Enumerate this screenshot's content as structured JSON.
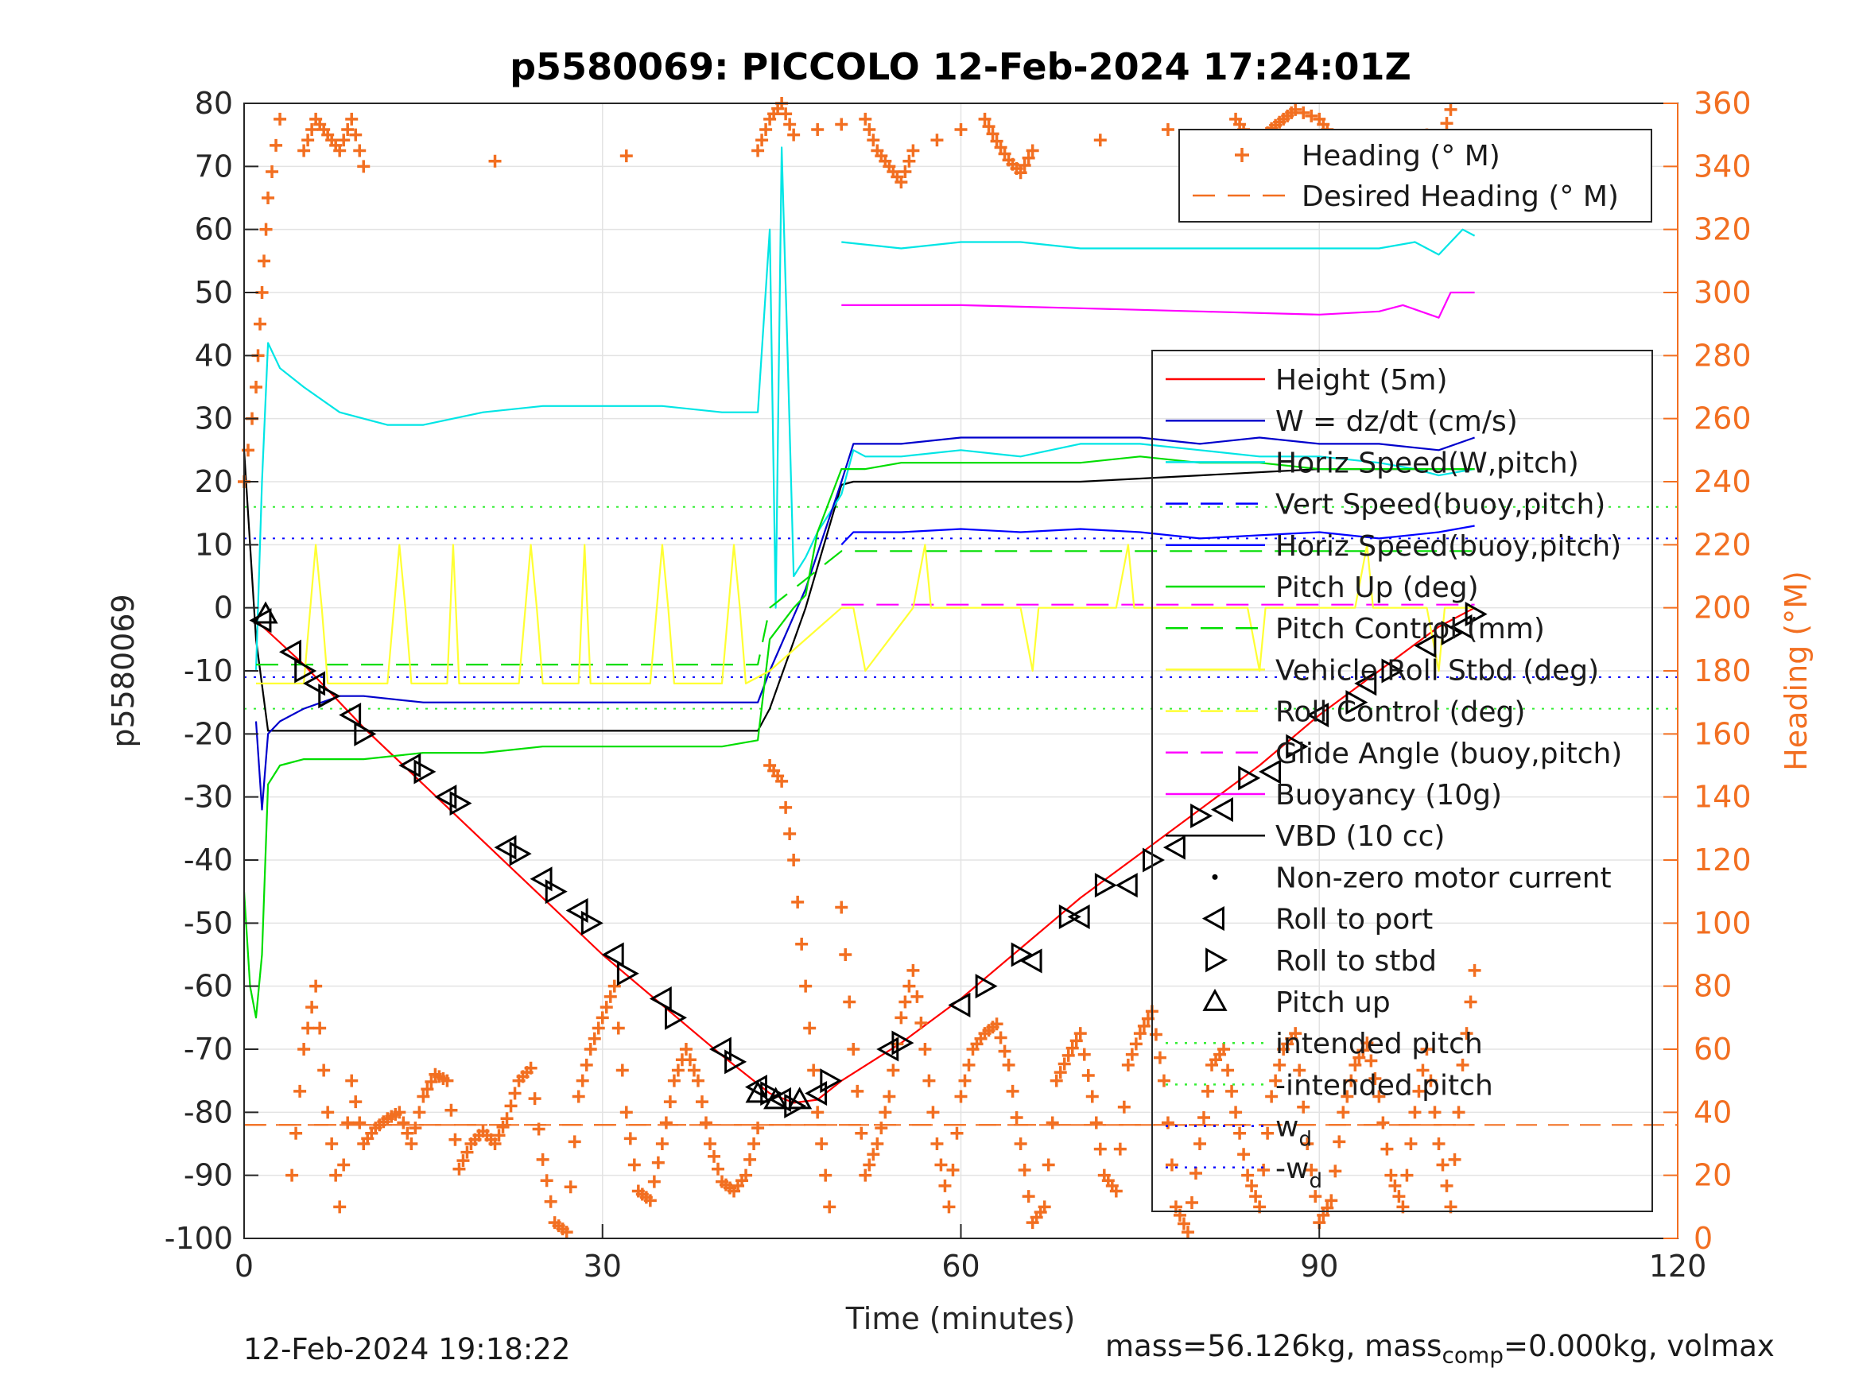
{
  "chart_data": {
    "type": "line",
    "title": "p5580069: PICCOLO 12-Feb-2024 17:24:01Z",
    "xlabel": "Time (minutes)",
    "ylabel": "p5580069",
    "y2label": "Heading (°M)",
    "xlim": [
      0,
      120
    ],
    "ylim": [
      -100,
      80
    ],
    "y2lim": [
      0,
      360
    ],
    "xticks": [
      0,
      30,
      60,
      90,
      120
    ],
    "yticks": [
      -100,
      -90,
      -80,
      -70,
      -60,
      -50,
      -40,
      -30,
      -20,
      -10,
      0,
      10,
      20,
      30,
      40,
      50,
      60,
      70,
      80
    ],
    "y2ticks": [
      0,
      20,
      40,
      60,
      80,
      100,
      120,
      140,
      160,
      180,
      200,
      220,
      240,
      260,
      280,
      300,
      320,
      340,
      360
    ],
    "grid": true,
    "legend_top": {
      "placement": "top-right",
      "entries": [
        {
          "label": "Heading (° M)",
          "color": "#f26f21",
          "style": "plus"
        },
        {
          "label": "Desired Heading (° M)",
          "color": "#f26f21",
          "style": "dashed"
        }
      ]
    },
    "legend_main": {
      "placement": "right",
      "entries": [
        {
          "label": "Height (5m)",
          "color": "#ff0000",
          "style": "solid"
        },
        {
          "label": "W = dz/dt (cm/s)",
          "color": "#0000cc",
          "style": "solid"
        },
        {
          "label": "Horiz Speed(W,pitch)",
          "color": "#00e5e5",
          "style": "solid"
        },
        {
          "label": "Vert Speed(buoy,pitch)",
          "color": "#0000ff",
          "style": "dashed"
        },
        {
          "label": "Horiz Speed(buoy,pitch)",
          "color": "#0000ff",
          "style": "solid"
        },
        {
          "label": "Pitch Up (deg)",
          "color": "#00dd00",
          "style": "solid"
        },
        {
          "label": "Pitch Control (mm)",
          "color": "#00dd00",
          "style": "dashed"
        },
        {
          "label": "Vehicle Roll Stbd (deg)",
          "color": "#ffff33",
          "style": "solid"
        },
        {
          "label": "Roll Control (deg)",
          "color": "#ffff33",
          "style": "dashed"
        },
        {
          "label": "Glide Angle (buoy,pitch)",
          "color": "#ff00ff",
          "style": "dashed"
        },
        {
          "label": "Buoyancy (10g)",
          "color": "#ff00ff",
          "style": "solid"
        },
        {
          "label": "VBD (10 cc)",
          "color": "#000000",
          "style": "solid"
        },
        {
          "label": "Non-zero motor current",
          "color": "#000000",
          "style": "dot"
        },
        {
          "label": "Roll to port",
          "color": "#000000",
          "style": "tri-left"
        },
        {
          "label": "Roll to stbd",
          "color": "#000000",
          "style": "tri-right"
        },
        {
          "label": "Pitch up",
          "color": "#000000",
          "style": "tri-up"
        },
        {
          "label": "intended pitch",
          "color": "#33ee33",
          "style": "dotted"
        },
        {
          "label": "-intended pitch",
          "color": "#33ee33",
          "style": "dotted"
        },
        {
          "label": "w_d",
          "color": "#0000ff",
          "style": "dotted"
        },
        {
          "label": "-w_d",
          "color": "#0000ff",
          "style": "dotted"
        }
      ]
    },
    "reference_lines": [
      {
        "name": "intended pitch",
        "y": 16,
        "color": "#33ee33"
      },
      {
        "name": "-intended pitch",
        "y": -16,
        "color": "#33ee33"
      },
      {
        "name": "w_d",
        "y": 11,
        "color": "#0000ff"
      },
      {
        "name": "-w_d",
        "y": -11,
        "color": "#0000ff"
      },
      {
        "name": "Desired Heading (° M)",
        "y2": 36,
        "color": "#f26f21"
      }
    ],
    "series": [
      {
        "name": "Height (5m)",
        "color": "#ff0000",
        "axis": "left",
        "x": [
          1,
          5,
          10,
          15,
          20,
          25,
          30,
          35,
          40,
          44,
          46,
          48,
          50,
          55,
          60,
          65,
          70,
          75,
          80,
          85,
          90,
          95,
          100,
          103
        ],
        "y": [
          -2,
          -9,
          -19,
          -28,
          -37,
          -46,
          -55,
          -63,
          -71,
          -77,
          -78.5,
          -78,
          -75,
          -69,
          -62,
          -54,
          -46,
          -39,
          -32,
          -25,
          -17,
          -10,
          -3,
          0
        ]
      },
      {
        "name": "VBD (10 cc)",
        "color": "#000000",
        "axis": "left",
        "x": [
          0,
          0.5,
          1,
          2,
          10,
          20,
          30,
          40,
          43,
          44,
          47,
          50,
          51,
          60,
          70,
          80,
          90,
          96,
          100,
          103
        ],
        "y": [
          25,
          10,
          -5,
          -19.5,
          -19.5,
          -19.5,
          -19.5,
          -19.5,
          -19.5,
          -16,
          0,
          19.5,
          20,
          20,
          20,
          21,
          22,
          22,
          22,
          22
        ]
      },
      {
        "name": "Horiz Speed(W,pitch)",
        "color": "#00e5e5",
        "axis": "left",
        "x": [
          1,
          1.5,
          2,
          3,
          5,
          8,
          10,
          12,
          15,
          20,
          25,
          30,
          35,
          40,
          43,
          44,
          44.5,
          45,
          45.5,
          46,
          47,
          48,
          50,
          51,
          52,
          55,
          60,
          65,
          70,
          75,
          80,
          85,
          90,
          95,
          98,
          100,
          103
        ],
        "y": [
          -10,
          20,
          42,
          38,
          35,
          31,
          30,
          29,
          29,
          31,
          32,
          32,
          32,
          31,
          31,
          60,
          0,
          73,
          40,
          5,
          8,
          12,
          18,
          25,
          24,
          24,
          25,
          24,
          26,
          26,
          25,
          24,
          24,
          23,
          22,
          21,
          22
        ]
      },
      {
        "name": "Horiz Speed(W,pitch) upper",
        "color": "#00e5e5",
        "axis": "left",
        "x": [
          50,
          55,
          60,
          65,
          70,
          75,
          80,
          85,
          90,
          95,
          98,
          100,
          102,
          103
        ],
        "y": [
          58,
          57,
          58,
          58,
          57,
          57,
          57,
          57,
          57,
          57,
          58,
          56,
          60,
          59
        ]
      },
      {
        "name": "W = dz/dt (cm/s)",
        "color": "#0000cc",
        "axis": "left",
        "x": [
          1,
          1.5,
          2,
          3,
          5,
          8,
          10,
          15,
          20,
          25,
          30,
          35,
          40,
          43,
          44,
          47,
          50,
          51,
          55,
          60,
          65,
          70,
          75,
          80,
          85,
          90,
          95,
          100,
          103
        ],
        "y": [
          -18,
          -32,
          -20,
          -18,
          -16,
          -14,
          -14,
          -15,
          -15,
          -15,
          -15,
          -15,
          -15,
          -15,
          -10,
          3,
          20,
          26,
          26,
          27,
          27,
          27,
          27,
          26,
          27,
          26,
          26,
          25,
          27
        ]
      },
      {
        "name": "Horiz Speed(buoy,pitch)",
        "color": "#0000ff",
        "axis": "left",
        "x": [
          50,
          51,
          55,
          60,
          65,
          70,
          75,
          80,
          85,
          90,
          95,
          100,
          103
        ],
        "y": [
          10,
          12,
          12,
          12.5,
          12,
          12.5,
          12,
          11,
          11.5,
          12,
          11,
          12,
          13
        ]
      },
      {
        "name": "Pitch Up (deg)",
        "color": "#00dd00",
        "axis": "left",
        "x": [
          0,
          0.5,
          1,
          1.5,
          2,
          3,
          5,
          10,
          15,
          20,
          25,
          30,
          35,
          40,
          43,
          44,
          46,
          47,
          48,
          50,
          52,
          55,
          60,
          65,
          70,
          75,
          80,
          85,
          90,
          95,
          100,
          103
        ],
        "y": [
          -45,
          -60,
          -65,
          -55,
          -28,
          -25,
          -24,
          -24,
          -23,
          -23,
          -22,
          -22,
          -22,
          -22,
          -21,
          -5,
          0,
          2,
          12,
          22,
          22,
          23,
          23,
          23,
          23,
          24,
          23,
          23,
          22,
          22,
          22,
          22
        ]
      },
      {
        "name": "Pitch Control (mm)",
        "color": "#00dd00",
        "axis": "left",
        "dashed": true,
        "x": [
          1,
          43,
          44,
          50,
          103
        ],
        "y": [
          -9,
          -9,
          0,
          9,
          9
        ]
      },
      {
        "name": "Buoyancy (10g)",
        "color": "#ff00ff",
        "axis": "left",
        "x": [
          50,
          60,
          70,
          80,
          90,
          95,
          97,
          100,
          101,
          103
        ],
        "y": [
          48,
          48,
          47.5,
          47,
          46.5,
          47,
          48,
          46,
          50,
          50
        ]
      },
      {
        "name": "Glide Angle (buoy,pitch)",
        "color": "#ff00ff",
        "axis": "left",
        "dashed": true,
        "x": [
          50,
          103
        ],
        "y": [
          0.5,
          0.5
        ]
      },
      {
        "name": "Vehicle Roll Stbd (deg)",
        "color": "#ffff33",
        "axis": "left",
        "x": [
          1,
          2,
          5,
          6,
          6.5,
          7,
          12,
          13,
          13.5,
          14,
          17,
          17.5,
          18,
          23,
          24,
          24.5,
          25,
          28,
          28.5,
          29,
          34,
          35,
          35.5,
          36,
          40,
          41,
          41.5,
          42,
          44,
          50,
          51,
          52,
          56,
          57,
          57.5,
          58,
          65,
          66,
          66.5,
          67,
          73,
          74,
          74.5,
          75,
          84,
          85,
          85.5,
          86,
          93,
          94,
          94.5,
          95,
          99,
          100,
          100.5,
          101,
          103
        ],
        "y": [
          -12,
          -12,
          -12,
          10,
          0,
          -12,
          -12,
          10,
          0,
          -12,
          -12,
          10,
          -12,
          -12,
          10,
          0,
          -12,
          -12,
          10,
          -12,
          -12,
          10,
          0,
          -12,
          -12,
          10,
          0,
          -12,
          -10,
          0,
          0,
          -10,
          0,
          10,
          0,
          0,
          0,
          -10,
          0,
          0,
          0,
          10,
          0,
          0,
          0,
          -10,
          0,
          0,
          0,
          10,
          0,
          0,
          0,
          -10,
          0,
          0,
          0
        ]
      },
      {
        "name": "Heading (° M)",
        "color": "#f26f21",
        "axis": "right",
        "markers": "plus",
        "x": [
          0,
          1,
          1.5,
          2,
          3,
          4,
          5,
          6,
          7,
          8,
          9,
          10,
          11,
          12,
          13,
          14,
          15,
          16,
          17,
          18,
          19,
          20,
          21,
          22,
          23,
          24,
          25,
          26,
          27,
          28,
          29,
          30,
          31,
          32,
          33,
          34,
          35,
          36,
          37,
          38,
          39,
          40,
          41,
          42,
          43,
          44,
          45,
          46,
          47,
          48,
          49,
          50,
          51,
          52,
          53,
          54,
          55,
          56,
          57,
          58,
          59,
          60,
          61,
          62,
          63,
          64,
          65,
          66,
          67,
          68,
          69,
          70,
          71,
          72,
          73,
          74,
          75,
          76,
          77,
          78,
          79,
          80,
          81,
          82,
          83,
          84,
          85,
          86,
          87,
          88,
          89,
          90,
          91,
          92,
          93,
          94,
          95,
          96,
          97,
          98,
          99,
          100,
          101,
          102,
          103
        ],
        "y": [
          240,
          270,
          300,
          330,
          355,
          20,
          60,
          80,
          40,
          10,
          50,
          30,
          35,
          38,
          40,
          30,
          45,
          52,
          50,
          22,
          30,
          34,
          30,
          38,
          50,
          54,
          25,
          5,
          2,
          45,
          60,
          70,
          80,
          40,
          15,
          12,
          30,
          50,
          60,
          50,
          30,
          18,
          15,
          20,
          35,
          150,
          145,
          120,
          80,
          40,
          10,
          105,
          60,
          20,
          30,
          45,
          70,
          85,
          60,
          30,
          10,
          45,
          60,
          65,
          68,
          55,
          30,
          5,
          10,
          50,
          58,
          65,
          45,
          20,
          15,
          55,
          65,
          72,
          50,
          10,
          2,
          30,
          55,
          60,
          40,
          20,
          10,
          45,
          60,
          65,
          30,
          5,
          12,
          40,
          55,
          62,
          45,
          20,
          10,
          40,
          60,
          30,
          10,
          55,
          85
        ]
      },
      {
        "name": "Heading (° M) upper",
        "color": "#f26f21",
        "axis": "right",
        "markers": "plus",
        "x": [
          5,
          6,
          7,
          8,
          9,
          10,
          43,
          44,
          45,
          46,
          52,
          53,
          54,
          55,
          56,
          62,
          63,
          64,
          65,
          66,
          83,
          84,
          85,
          86,
          87,
          88,
          90,
          91,
          92,
          99,
          100,
          101
        ],
        "y": [
          345,
          355,
          350,
          345,
          355,
          340,
          345,
          355,
          360,
          350,
          355,
          345,
          340,
          335,
          345,
          355,
          348,
          342,
          338,
          345,
          355,
          350,
          348,
          352,
          355,
          358,
          355,
          350,
          345,
          350,
          345,
          358
        ]
      },
      {
        "name": "Desired Heading (° M)",
        "color": "#f26f21",
        "axis": "right",
        "dashed": true,
        "x": [
          0,
          103
        ],
        "y": [
          36,
          36
        ]
      }
    ],
    "markers": {
      "roll_to_port": {
        "x": [
          1.5,
          4,
          6,
          9,
          14,
          17,
          22,
          25,
          28,
          31,
          35,
          40,
          43,
          45,
          48,
          54,
          60,
          66,
          70,
          74,
          78,
          82,
          86,
          90,
          94,
          99,
          102
        ],
        "y": [
          -2,
          -7,
          -12,
          -17,
          -25,
          -30,
          -38,
          -43,
          -48,
          -55,
          -62,
          -70,
          -76,
          -78,
          -77,
          -70,
          -63,
          -56,
          -49,
          -44,
          -38,
          -32,
          -26,
          -17,
          -12,
          -6,
          -3
        ]
      },
      "roll_to_stbd": {
        "x": [
          5,
          7,
          10,
          15,
          18,
          23,
          26,
          29,
          32,
          36,
          41,
          44,
          46,
          49,
          55,
          62,
          65,
          69,
          72,
          76,
          80,
          84,
          88,
          93,
          96,
          101,
          103
        ],
        "y": [
          -10,
          -14,
          -20,
          -26,
          -31,
          -39,
          -45,
          -50,
          -58,
          -65,
          -72,
          -77,
          -79,
          -75,
          -69,
          -60,
          -55,
          -49,
          -44,
          -40,
          -33,
          -27,
          -22,
          -15,
          -10,
          -4,
          -1
        ]
      },
      "pitch_up": {
        "x": [
          1.8,
          43,
          44.5,
          46.5
        ],
        "y": [
          -1,
          -77,
          -78,
          -78
        ]
      }
    }
  },
  "footer": {
    "timestamp": "12-Feb-2024 19:18:22",
    "mass_prefix": "mass=56.126kg, mass",
    "mass_sub": "comp",
    "mass_suffix": "=0.000kg, volmax"
  }
}
